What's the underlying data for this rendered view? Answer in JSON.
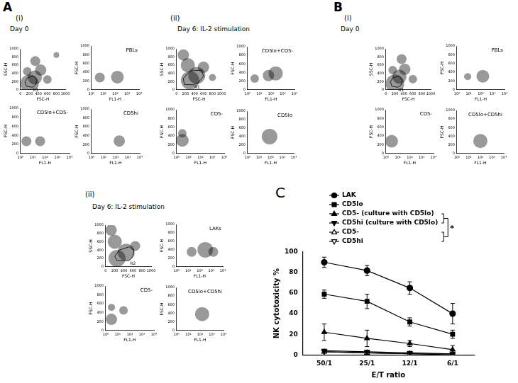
{
  "figure_labels": [
    "A",
    "(i)",
    "Day 0",
    "(ii)",
    "Day 6: IL-2 stimulation",
    "B",
    "(i)",
    "Day 0",
    "(ii)",
    "Day 6: IL-2 stimulation",
    "C"
  ],
  "chart_data": [
    {
      "type": "bubble",
      "x_label": "FSC-H",
      "y_label": "SSC-H",
      "xlim": [
        0,
        1000
      ],
      "xticks": [
        0,
        200,
        400,
        600,
        800,
        1000
      ],
      "ylim": [
        0,
        1000
      ],
      "yticks": [
        0,
        200,
        400,
        600,
        800,
        1000
      ],
      "color": "#000000",
      "x": [
        200,
        320,
        450,
        330,
        600,
        150,
        800
      ],
      "y": [
        150,
        300,
        480,
        700,
        250,
        450,
        850
      ],
      "size": [
        13,
        10,
        8,
        7,
        6,
        6,
        4
      ],
      "gate": {
        "label": "R1",
        "x": [
          260,
          130,
          100,
          160,
          300,
          370,
          330
        ],
        "y": [
          60,
          90,
          200,
          300,
          330,
          230,
          110
        ]
      }
    },
    {
      "type": "bubble",
      "title": "PBLs",
      "x_label": "FL1-H",
      "y_label": "FSC-H",
      "log": "x",
      "xlim": [
        1,
        10000
      ],
      "xticks": [
        {
          "value": 1,
          "label": "10⁰"
        },
        {
          "value": 10,
          "label": "10¹"
        },
        {
          "value": 100,
          "label": "10²"
        },
        {
          "value": 1000,
          "label": "10³"
        },
        {
          "value": 10000,
          "label": "10⁴"
        }
      ],
      "ylim": [
        0,
        1000
      ],
      "yticks": [
        0,
        200,
        400,
        600,
        800,
        1000
      ],
      "color": "#000000",
      "x": [
        5,
        150
      ],
      "y": [
        280,
        290
      ],
      "size": [
        7,
        9
      ]
    },
    {
      "type": "bubble",
      "title": "CD5lo+CD5-",
      "x_label": "FL1-H",
      "y_label": "FSC-H",
      "log": "x",
      "xlim": [
        1,
        10000
      ],
      "xticks": [
        {
          "value": 1,
          "label": "10⁰"
        },
        {
          "value": 10,
          "label": "10¹"
        },
        {
          "value": 100,
          "label": "10²"
        },
        {
          "value": 1000,
          "label": "10³"
        },
        {
          "value": 10000,
          "label": "10⁴"
        }
      ],
      "ylim": [
        0,
        1000
      ],
      "yticks": [
        0,
        200,
        400,
        600,
        800,
        1000
      ],
      "color": "#000000",
      "x": [
        3,
        40
      ],
      "y": [
        270,
        270
      ],
      "size": [
        7,
        7
      ]
    },
    {
      "type": "bubble",
      "title": "CD5hi",
      "x_label": "FL1-H",
      "y_label": "FSC-H",
      "log": "x",
      "xlim": [
        1,
        10000
      ],
      "xticks": [
        {
          "value": 1,
          "label": "10⁰"
        },
        {
          "value": 10,
          "label": "10¹"
        },
        {
          "value": 100,
          "label": "10²"
        },
        {
          "value": 1000,
          "label": "10³"
        },
        {
          "value": 10000,
          "label": "10⁴"
        }
      ],
      "ylim": [
        0,
        1000
      ],
      "yticks": [
        0,
        200,
        400,
        600,
        800,
        1000
      ],
      "color": "#000000",
      "x": [
        200
      ],
      "y": [
        280
      ],
      "size": [
        8
      ]
    },
    {
      "type": "bubble",
      "x_label": "FSC-H",
      "y_label": "SSC-H",
      "xlim": [
        0,
        1000
      ],
      "xticks": [
        0,
        200,
        400,
        600,
        800,
        1000
      ],
      "ylim": [
        0,
        1000
      ],
      "yticks": [
        0,
        200,
        400,
        600,
        800,
        1000
      ],
      "color": "#000000",
      "x": [
        300,
        450,
        250,
        150,
        600,
        800
      ],
      "y": [
        230,
        350,
        600,
        850,
        550,
        300
      ],
      "size": [
        13,
        12,
        10,
        8,
        8,
        5
      ],
      "gate": {
        "label": "R1",
        "x": [
          380,
          170,
          150,
          300,
          560,
          600,
          480
        ],
        "y": [
          120,
          130,
          280,
          460,
          480,
          330,
          170
        ]
      }
    },
    {
      "type": "bubble",
      "title": "CD5lo+CD5-",
      "x_label": "FL1-H",
      "y_label": "FSC-H",
      "log": "x",
      "xlim": [
        1,
        10000
      ],
      "xticks": [
        {
          "value": 1,
          "label": "10⁰"
        },
        {
          "value": 10,
          "label": "10¹"
        },
        {
          "value": 100,
          "label": "10²"
        },
        {
          "value": 1000,
          "label": "10³"
        },
        {
          "value": 10000,
          "label": "10⁴"
        }
      ],
      "ylim": [
        0,
        1000
      ],
      "yticks": [
        0,
        200,
        400,
        600,
        800,
        1000
      ],
      "color": "#000000",
      "x": [
        4,
        60,
        250
      ],
      "y": [
        260,
        330,
        380
      ],
      "size": [
        6,
        8,
        10
      ]
    },
    {
      "type": "bubble",
      "title": "CD5-",
      "x_label": "FL1-H",
      "y_label": "FSC-H",
      "log": "x",
      "xlim": [
        1,
        10000
      ],
      "xticks": [
        {
          "value": 1,
          "label": "10⁰"
        },
        {
          "value": 10,
          "label": "10¹"
        },
        {
          "value": 100,
          "label": "10²"
        },
        {
          "value": 1000,
          "label": "10³"
        },
        {
          "value": 10000,
          "label": "10⁴"
        }
      ],
      "ylim": [
        0,
        1000
      ],
      "yticks": [
        0,
        200,
        400,
        600,
        800,
        1000
      ],
      "color": "#000000",
      "x": [
        3,
        3
      ],
      "y": [
        300,
        460
      ],
      "size": [
        9,
        6
      ]
    },
    {
      "type": "bubble",
      "title": "CD5lo",
      "x_label": "FL1-H",
      "y_label": "FSC-H",
      "log": "x",
      "xlim": [
        1,
        10000
      ],
      "xticks": [
        {
          "value": 1,
          "label": "10⁰"
        },
        {
          "value": 10,
          "label": "10¹"
        },
        {
          "value": 100,
          "label": "10²"
        },
        {
          "value": 1000,
          "label": "10³"
        },
        {
          "value": 10000,
          "label": "10⁴"
        }
      ],
      "ylim": [
        0,
        1000
      ],
      "yticks": [
        0,
        200,
        400,
        600,
        800,
        1000
      ],
      "color": "#000000",
      "x": [
        80
      ],
      "y": [
        400
      ],
      "size": [
        11
      ]
    },
    {
      "type": "bubble",
      "x_label": "FSC-H",
      "y_label": "SSC-H",
      "xlim": [
        0,
        1000
      ],
      "xticks": [
        0,
        200,
        400,
        600,
        800,
        1000
      ],
      "ylim": [
        0,
        1000
      ],
      "yticks": [
        0,
        200,
        400,
        600,
        800,
        1000
      ],
      "color": "#000000",
      "x": [
        200,
        300,
        420,
        350,
        150,
        600
      ],
      "y": [
        150,
        320,
        500,
        750,
        480,
        260
      ],
      "size": [
        13,
        10,
        8,
        7,
        6,
        6
      ],
      "gate": {
        "label": "R1",
        "x": [
          260,
          130,
          100,
          160,
          300,
          370,
          330
        ],
        "y": [
          60,
          90,
          200,
          300,
          330,
          230,
          110
        ]
      }
    },
    {
      "type": "bubble",
      "title": "PBLs",
      "x_label": "FL1-H",
      "y_label": "FSC-H",
      "log": "x",
      "xlim": [
        1,
        10000
      ],
      "xticks": [
        {
          "value": 1,
          "label": "10⁰"
        },
        {
          "value": 10,
          "label": "10¹"
        },
        {
          "value": 100,
          "label": "10²"
        },
        {
          "value": 1000,
          "label": "10³"
        },
        {
          "value": 10000,
          "label": "10⁴"
        }
      ],
      "ylim": [
        0,
        1000
      ],
      "yticks": [
        0,
        200,
        400,
        600,
        800,
        1000
      ],
      "color": "#000000",
      "x": [
        8,
        150
      ],
      "y": [
        300,
        310
      ],
      "size": [
        5,
        9
      ]
    },
    {
      "type": "bubble",
      "title": "CD5-",
      "x_label": "FL1-H",
      "y_label": "FSC-H",
      "log": "x",
      "xlim": [
        1,
        10000
      ],
      "xticks": [
        {
          "value": 1,
          "label": "10⁰"
        },
        {
          "value": 10,
          "label": "10¹"
        },
        {
          "value": 100,
          "label": "10²"
        },
        {
          "value": 1000,
          "label": "10³"
        },
        {
          "value": 10000,
          "label": "10⁴"
        }
      ],
      "ylim": [
        0,
        1000
      ],
      "yticks": [
        0,
        200,
        400,
        600,
        800,
        1000
      ],
      "color": "#000000",
      "x": [
        3
      ],
      "y": [
        280
      ],
      "size": [
        9
      ]
    },
    {
      "type": "bubble",
      "title": "CD5lo+CD5hi",
      "x_label": "FL1-H",
      "y_label": "FSC-H",
      "log": "x",
      "xlim": [
        1,
        10000
      ],
      "xticks": [
        {
          "value": 1,
          "label": "10⁰"
        },
        {
          "value": 10,
          "label": "10¹"
        },
        {
          "value": 100,
          "label": "10²"
        },
        {
          "value": 1000,
          "label": "10³"
        },
        {
          "value": 10000,
          "label": "10⁴"
        }
      ],
      "ylim": [
        0,
        1000
      ],
      "yticks": [
        0,
        200,
        400,
        600,
        800,
        1000
      ],
      "color": "#000000",
      "x": [
        100
      ],
      "y": [
        290
      ],
      "size": [
        10
      ]
    },
    {
      "type": "bubble",
      "x_label": "FSC-H",
      "y_label": "SSC-H",
      "xlim": [
        0,
        1000
      ],
      "xticks": [
        0,
        200,
        400,
        600,
        800,
        1000
      ],
      "ylim": [
        0,
        1000
      ],
      "yticks": [
        0,
        200,
        400,
        600,
        800,
        1000
      ],
      "color": "#000000",
      "x": [
        250,
        450,
        200,
        120,
        650
      ],
      "y": [
        200,
        350,
        600,
        880,
        500
      ],
      "size": [
        12,
        12,
        10,
        8,
        7
      ],
      "gate": {
        "label": "R2",
        "x": [
          520,
          250,
          200,
          300,
          520,
          620,
          600
        ],
        "y": [
          150,
          150,
          250,
          400,
          480,
          400,
          250
        ]
      }
    },
    {
      "type": "bubble",
      "title": "LAKs",
      "x_label": "FL1-H",
      "y_label": "FSC-H",
      "log": "x",
      "xlim": [
        1,
        10000
      ],
      "xticks": [
        {
          "value": 1,
          "label": "10⁰"
        },
        {
          "value": 10,
          "label": "10¹"
        },
        {
          "value": 100,
          "label": "10²"
        },
        {
          "value": 1000,
          "label": "10³"
        },
        {
          "value": 10000,
          "label": "10⁴"
        }
      ],
      "ylim": [
        0,
        1000
      ],
      "yticks": [
        0,
        200,
        400,
        600,
        800,
        1000
      ],
      "color": "#000000",
      "x": [
        20,
        300,
        1500
      ],
      "y": [
        350,
        400,
        350
      ],
      "size": [
        7,
        11,
        7
      ]
    },
    {
      "type": "bubble",
      "title": "CD5-",
      "x_label": "FL1-H",
      "y_label": "FSC-H",
      "log": "x",
      "xlim": [
        1,
        10000
      ],
      "xticks": [
        {
          "value": 1,
          "label": "10⁰"
        },
        {
          "value": 10,
          "label": "10¹"
        },
        {
          "value": 100,
          "label": "10²"
        },
        {
          "value": 1000,
          "label": "10³"
        },
        {
          "value": 10000,
          "label": "10⁴"
        }
      ],
      "ylim": [
        0,
        1000
      ],
      "yticks": [
        0,
        200,
        400,
        600,
        800,
        1000
      ],
      "color": "#000000",
      "x": [
        3,
        30,
        3
      ],
      "y": [
        250,
        450,
        520
      ],
      "size": [
        8,
        6,
        5
      ]
    },
    {
      "type": "bubble",
      "title": "CD5lo+CD5hi",
      "x_label": "FL1-H",
      "y_label": "FSC-H",
      "log": "x",
      "xlim": [
        1,
        10000
      ],
      "xticks": [
        {
          "value": 1,
          "label": "10⁰"
        },
        {
          "value": 10,
          "label": "10¹"
        },
        {
          "value": 100,
          "label": "10²"
        },
        {
          "value": 1000,
          "label": "10³"
        },
        {
          "value": 10000,
          "label": "10⁴"
        }
      ],
      "ylim": [
        0,
        1000
      ],
      "yticks": [
        0,
        200,
        400,
        600,
        800,
        1000
      ],
      "color": "#000000",
      "x": [
        150
      ],
      "y": [
        380
      ],
      "size": [
        10
      ]
    },
    {
      "type": "line",
      "categories": [
        "50/1",
        "25/1",
        "12/1",
        "6/1"
      ],
      "x_label": "E/T ratio",
      "y_label": "NK cytotoxicity %",
      "ylim": [
        0,
        100
      ],
      "yticks": [
        0,
        20,
        40,
        60,
        80,
        100
      ],
      "grid": false,
      "legend": "top-right",
      "annotations": [
        {
          "text": "*"
        }
      ],
      "series": [
        {
          "name": "LAK",
          "color": "#000000",
          "marker": "circle",
          "values": [
            90,
            82,
            65,
            40
          ],
          "errors": [
            5,
            5,
            6,
            10
          ]
        },
        {
          "name": "CD5lo",
          "color": "#000000",
          "marker": "square",
          "values": [
            59,
            52,
            32,
            20
          ],
          "errors": [
            4,
            7,
            4,
            4
          ]
        },
        {
          "name": "CD5- (culture with CD5lo)",
          "color": "#000000",
          "marker": "triangle",
          "values": [
            22,
            16,
            11,
            5
          ],
          "errors": [
            8,
            8,
            3,
            4
          ]
        },
        {
          "name": "CD5hi (culture with CD5lo)",
          "color": "#000000",
          "marker": "triangle-down",
          "values": [
            4,
            3,
            2,
            1
          ],
          "errors": [
            1,
            1,
            1,
            1
          ]
        },
        {
          "name": "CD5-",
          "color": "#000000",
          "marker": "triangle-open",
          "values": [
            3,
            2,
            1,
            1
          ],
          "errors": [
            1,
            1,
            1,
            1
          ]
        },
        {
          "name": "CD5hi",
          "color": "#000000",
          "marker": "triangle-down-open",
          "values": [
            3,
            2,
            1,
            0
          ],
          "errors": [
            1,
            1,
            1,
            1
          ]
        }
      ]
    }
  ]
}
